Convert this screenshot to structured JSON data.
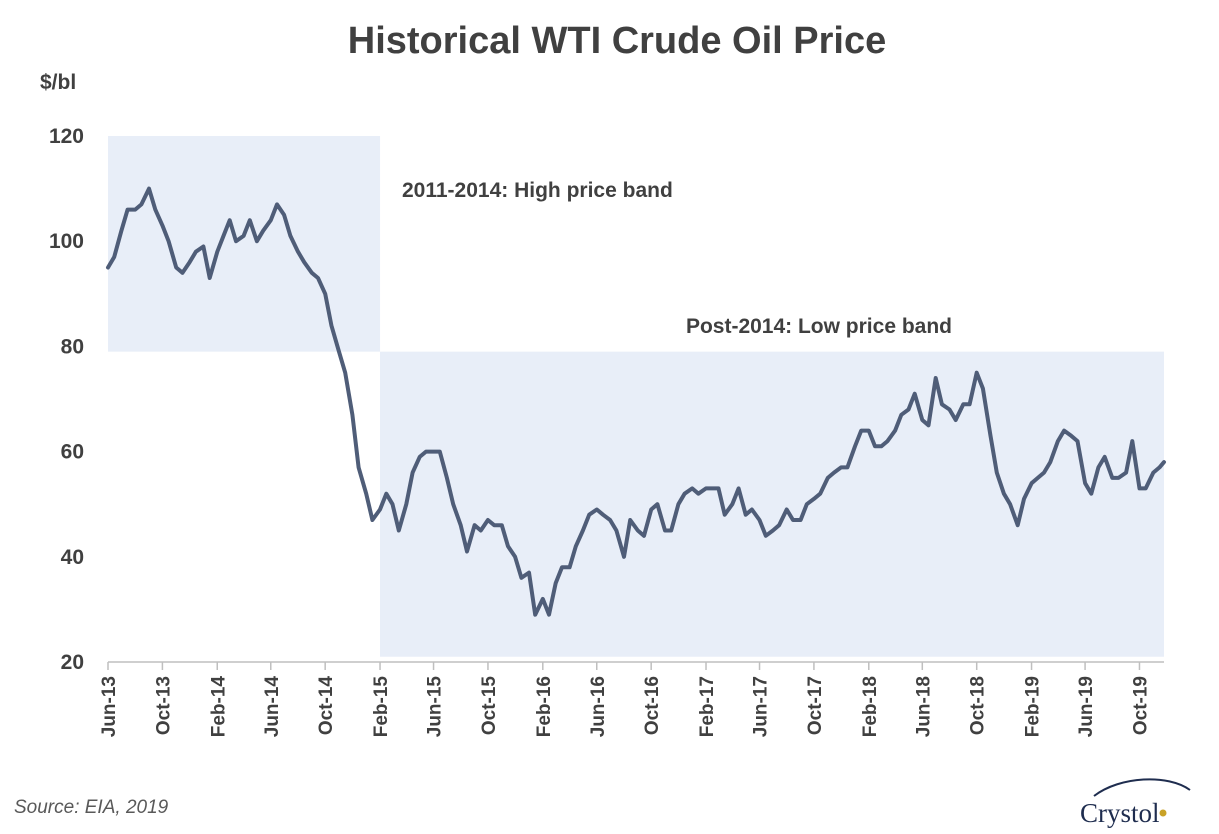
{
  "chart_data": {
    "type": "line",
    "title": "Historical WTI Crude Oil Price",
    "ylabel": "$/bl",
    "xlabel": "",
    "ylim": [
      20,
      120
    ],
    "yticks": [
      20,
      40,
      60,
      80,
      100,
      120
    ],
    "xticks": [
      "Jun-13",
      "Oct-13",
      "Feb-14",
      "Jun-14",
      "Oct-14",
      "Feb-15",
      "Jun-15",
      "Oct-15",
      "Feb-16",
      "Jun-16",
      "Oct-16",
      "Feb-17",
      "Jun-17",
      "Oct-17",
      "Feb-18",
      "Jun-18",
      "Oct-18",
      "Feb-19",
      "Jun-19",
      "Oct-19"
    ],
    "xlim": [
      "2013-06-01",
      "2019-11-25"
    ],
    "grid": false,
    "bands": [
      {
        "label": "2011-2014: High price band",
        "x": [
          "2013-06-01",
          "2015-02-01"
        ],
        "y": [
          79,
          120
        ],
        "color": "#e8eef8"
      },
      {
        "label": "Post-2014: Low price band",
        "x": [
          "2015-02-01",
          "2019-11-25"
        ],
        "y": [
          21,
          79
        ],
        "color": "#e8eef8"
      }
    ],
    "series": [
      {
        "color": "#4f5d78",
        "points": [
          [
            "2013-06-01",
            95
          ],
          [
            "2013-06-15",
            97
          ],
          [
            "2013-07-01",
            102
          ],
          [
            "2013-07-15",
            106
          ],
          [
            "2013-08-01",
            106
          ],
          [
            "2013-08-15",
            107
          ],
          [
            "2013-09-01",
            110
          ],
          [
            "2013-09-15",
            106
          ],
          [
            "2013-10-01",
            103
          ],
          [
            "2013-10-15",
            100
          ],
          [
            "2013-11-01",
            95
          ],
          [
            "2013-11-15",
            94
          ],
          [
            "2013-12-01",
            96
          ],
          [
            "2013-12-15",
            98
          ],
          [
            "2014-01-01",
            99
          ],
          [
            "2014-01-15",
            93
          ],
          [
            "2014-02-01",
            98
          ],
          [
            "2014-02-15",
            101
          ],
          [
            "2014-03-01",
            104
          ],
          [
            "2014-03-15",
            100
          ],
          [
            "2014-04-01",
            101
          ],
          [
            "2014-04-15",
            104
          ],
          [
            "2014-05-01",
            100
          ],
          [
            "2014-05-15",
            102
          ],
          [
            "2014-06-01",
            104
          ],
          [
            "2014-06-15",
            107
          ],
          [
            "2014-07-01",
            105
          ],
          [
            "2014-07-15",
            101
          ],
          [
            "2014-08-01",
            98
          ],
          [
            "2014-08-15",
            96
          ],
          [
            "2014-09-01",
            94
          ],
          [
            "2014-09-15",
            93
          ],
          [
            "2014-10-01",
            90
          ],
          [
            "2014-10-15",
            84
          ],
          [
            "2014-11-01",
            79
          ],
          [
            "2014-11-15",
            75
          ],
          [
            "2014-12-01",
            67
          ],
          [
            "2014-12-15",
            57
          ],
          [
            "2015-01-01",
            52
          ],
          [
            "2015-01-15",
            47
          ],
          [
            "2015-02-01",
            49
          ],
          [
            "2015-02-15",
            52
          ],
          [
            "2015-03-01",
            50
          ],
          [
            "2015-03-15",
            45
          ],
          [
            "2015-04-01",
            50
          ],
          [
            "2015-04-15",
            56
          ],
          [
            "2015-05-01",
            59
          ],
          [
            "2015-05-15",
            60
          ],
          [
            "2015-06-01",
            60
          ],
          [
            "2015-06-15",
            60
          ],
          [
            "2015-07-01",
            55
          ],
          [
            "2015-07-15",
            50
          ],
          [
            "2015-08-01",
            46
          ],
          [
            "2015-08-15",
            41
          ],
          [
            "2015-09-01",
            46
          ],
          [
            "2015-09-15",
            45
          ],
          [
            "2015-10-01",
            47
          ],
          [
            "2015-10-15",
            46
          ],
          [
            "2015-11-01",
            46
          ],
          [
            "2015-11-15",
            42
          ],
          [
            "2015-12-01",
            40
          ],
          [
            "2015-12-15",
            36
          ],
          [
            "2016-01-01",
            37
          ],
          [
            "2016-01-15",
            29
          ],
          [
            "2016-02-01",
            32
          ],
          [
            "2016-02-15",
            29
          ],
          [
            "2016-03-01",
            35
          ],
          [
            "2016-03-15",
            38
          ],
          [
            "2016-04-01",
            38
          ],
          [
            "2016-04-15",
            42
          ],
          [
            "2016-05-01",
            45
          ],
          [
            "2016-05-15",
            48
          ],
          [
            "2016-06-01",
            49
          ],
          [
            "2016-06-15",
            48
          ],
          [
            "2016-07-01",
            47
          ],
          [
            "2016-07-15",
            45
          ],
          [
            "2016-08-01",
            40
          ],
          [
            "2016-08-15",
            47
          ],
          [
            "2016-09-01",
            45
          ],
          [
            "2016-09-15",
            44
          ],
          [
            "2016-10-01",
            49
          ],
          [
            "2016-10-15",
            50
          ],
          [
            "2016-11-01",
            45
          ],
          [
            "2016-11-15",
            45
          ],
          [
            "2016-12-01",
            50
          ],
          [
            "2016-12-15",
            52
          ],
          [
            "2017-01-01",
            53
          ],
          [
            "2017-01-15",
            52
          ],
          [
            "2017-02-01",
            53
          ],
          [
            "2017-02-15",
            53
          ],
          [
            "2017-03-01",
            53
          ],
          [
            "2017-03-15",
            48
          ],
          [
            "2017-04-01",
            50
          ],
          [
            "2017-04-15",
            53
          ],
          [
            "2017-05-01",
            48
          ],
          [
            "2017-05-15",
            49
          ],
          [
            "2017-06-01",
            47
          ],
          [
            "2017-06-15",
            44
          ],
          [
            "2017-07-01",
            45
          ],
          [
            "2017-07-15",
            46
          ],
          [
            "2017-08-01",
            49
          ],
          [
            "2017-08-15",
            47
          ],
          [
            "2017-09-01",
            47
          ],
          [
            "2017-09-15",
            50
          ],
          [
            "2017-10-01",
            51
          ],
          [
            "2017-10-15",
            52
          ],
          [
            "2017-11-01",
            55
          ],
          [
            "2017-11-15",
            56
          ],
          [
            "2017-12-01",
            57
          ],
          [
            "2017-12-15",
            57
          ],
          [
            "2018-01-01",
            61
          ],
          [
            "2018-01-15",
            64
          ],
          [
            "2018-02-01",
            64
          ],
          [
            "2018-02-15",
            61
          ],
          [
            "2018-03-01",
            61
          ],
          [
            "2018-03-15",
            62
          ],
          [
            "2018-04-01",
            64
          ],
          [
            "2018-04-15",
            67
          ],
          [
            "2018-05-01",
            68
          ],
          [
            "2018-05-15",
            71
          ],
          [
            "2018-06-01",
            66
          ],
          [
            "2018-06-15",
            65
          ],
          [
            "2018-07-01",
            74
          ],
          [
            "2018-07-15",
            69
          ],
          [
            "2018-08-01",
            68
          ],
          [
            "2018-08-15",
            66
          ],
          [
            "2018-09-01",
            69
          ],
          [
            "2018-09-15",
            69
          ],
          [
            "2018-10-01",
            75
          ],
          [
            "2018-10-15",
            72
          ],
          [
            "2018-11-01",
            63
          ],
          [
            "2018-11-15",
            56
          ],
          [
            "2018-12-01",
            52
          ],
          [
            "2018-12-15",
            50
          ],
          [
            "2019-01-01",
            46
          ],
          [
            "2019-01-15",
            51
          ],
          [
            "2019-02-01",
            54
          ],
          [
            "2019-02-15",
            55
          ],
          [
            "2019-03-01",
            56
          ],
          [
            "2019-03-15",
            58
          ],
          [
            "2019-04-01",
            62
          ],
          [
            "2019-04-15",
            64
          ],
          [
            "2019-05-01",
            63
          ],
          [
            "2019-05-15",
            62
          ],
          [
            "2019-06-01",
            54
          ],
          [
            "2019-06-15",
            52
          ],
          [
            "2019-07-01",
            57
          ],
          [
            "2019-07-15",
            59
          ],
          [
            "2019-08-01",
            55
          ],
          [
            "2019-08-15",
            55
          ],
          [
            "2019-09-01",
            56
          ],
          [
            "2019-09-15",
            62
          ],
          [
            "2019-10-01",
            53
          ],
          [
            "2019-10-15",
            53
          ],
          [
            "2019-11-01",
            56
          ],
          [
            "2019-11-15",
            57
          ],
          [
            "2019-11-25",
            58
          ]
        ]
      }
    ]
  },
  "source": "Source: EIA, 2019",
  "logo": {
    "text": "Crystol"
  }
}
